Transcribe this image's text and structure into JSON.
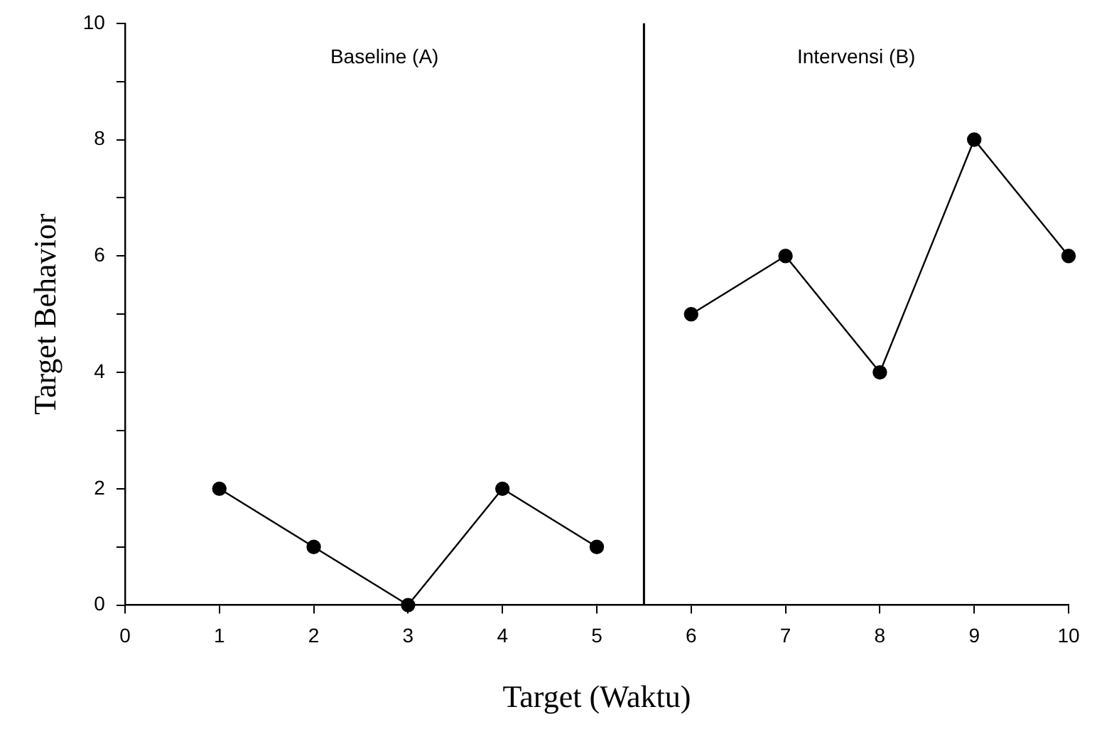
{
  "chart_data": {
    "type": "line",
    "xlabel": "Target (Waktu)",
    "ylabel": "Target Behavior",
    "xlim": [
      0,
      10
    ],
    "xticks": [
      0,
      1,
      2,
      3,
      4,
      5,
      6,
      7,
      8,
      9,
      10
    ],
    "ylim": [
      0,
      10
    ],
    "yticks": [
      0,
      {
        "value": 1,
        "label": null
      },
      2,
      {
        "value": 3,
        "label": null
      },
      4,
      {
        "value": 5,
        "label": null
      },
      6,
      {
        "value": 7,
        "label": null
      },
      8,
      {
        "value": 9,
        "label": null
      },
      10
    ],
    "series": [
      {
        "color": "#000000",
        "x": [
          1,
          2,
          3,
          4,
          5
        ],
        "values": [
          2,
          1,
          0,
          2,
          1
        ]
      },
      {
        "color": "#000000",
        "x": [
          6,
          7,
          8,
          9,
          10
        ],
        "values": [
          5,
          6,
          4,
          8,
          6
        ]
      }
    ],
    "ref_lines": [
      {
        "axis": "x",
        "value": 5.5,
        "color": "#000000"
      }
    ],
    "annotations": [
      "Baseline (A)",
      "Intervensi (B)"
    ],
    "marker": "circle",
    "line_style": "solid",
    "grid": false,
    "legend": false
  }
}
